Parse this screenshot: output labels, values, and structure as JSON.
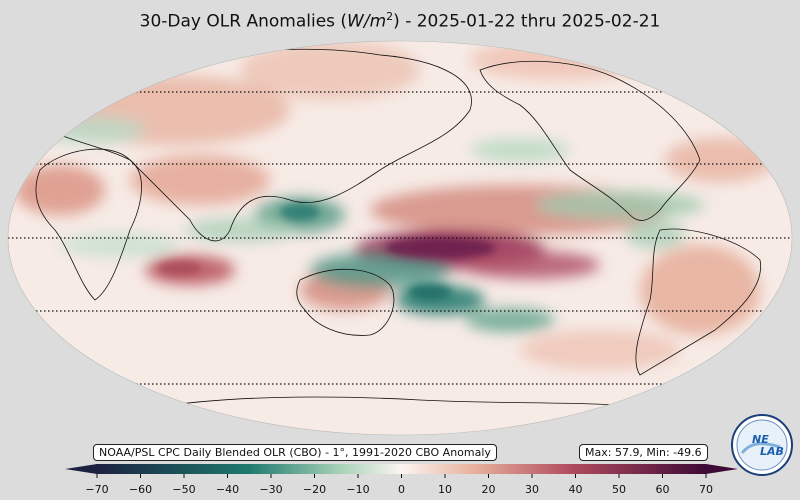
{
  "header": {
    "title_prefix": "30-Day OLR Anomalies (",
    "title_unit_w": "W",
    "title_unit_m": "/m",
    "title_unit_exp": "2",
    "title_suffix": ") - 2025-01-22 thru 2025-02-21"
  },
  "source_label": "NOAA/PSL CPC Daily Blended OLR (CBO) - 1°, 1991-2020 CBO Anomaly",
  "stats_label": "Max: 57.9,  Min: -49.6",
  "colorbar": {
    "ticks": [
      "−70",
      "−60",
      "−50",
      "−40",
      "−30",
      "−20",
      "−10",
      "0",
      "10",
      "20",
      "30",
      "40",
      "50",
      "60",
      "70"
    ],
    "range": [
      -70,
      70
    ],
    "colors": {
      "neg_max": "#1c2140",
      "neg_mid": "#1e7a6e",
      "neg_low": "#a8d2b8",
      "zero": "#fbf5f2",
      "pos_low": "#e7b09c",
      "pos_mid": "#b04a5e",
      "pos_max": "#3e0a36"
    }
  },
  "logo": {
    "text_top": "NE",
    "text_bottom": "LAB"
  }
}
